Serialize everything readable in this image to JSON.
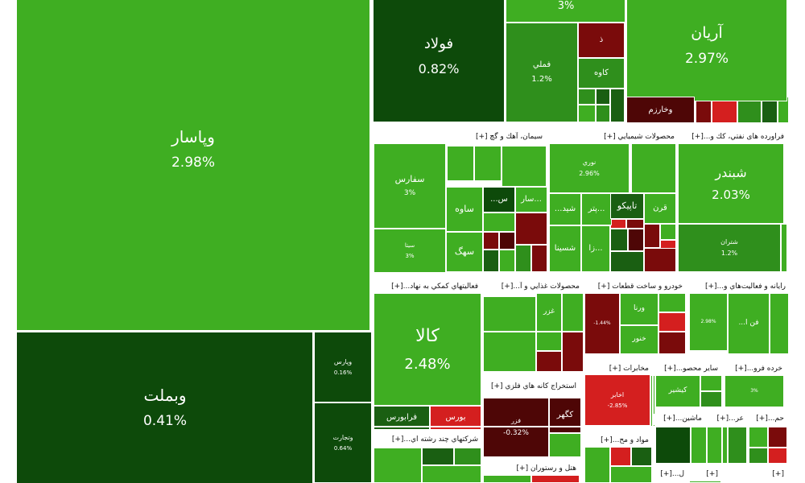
{
  "chart_data": {
    "type": "treemap",
    "colors": {
      "bright_green": "#3fae22",
      "mid_green": "#2f8f1c",
      "dark_green": "#1a5f12",
      "deep_green": "#0d4a0a",
      "red": "#d41f1f",
      "dark_red": "#7a0b0b",
      "maroon": "#4e0606",
      "header_bg": "#ffffff"
    },
    "sectors": [
      {
        "label": "فراورده های نفتي، کك و...[+]"
      },
      {
        "label": "محصولات شيميايي [+]"
      },
      {
        "label": "سيمان، آهك و گچ [+]"
      },
      {
        "label": "رايانه و فعاليت‌هاي و...[+]"
      },
      {
        "label": "خودرو و ساخت قطعات [+]"
      },
      {
        "label": "محصولات غذايي و آ...[+]"
      },
      {
        "label": "فعاليتهاي كمكي به نهاد...[+]"
      },
      {
        "label": "مخابرات [+]"
      },
      {
        "label": "ساير محصو...[+]"
      },
      {
        "label": "خرده فرو...[+]"
      },
      {
        "label": "استخراج كانه هاي فلزي [+]"
      },
      {
        "label": "ماشين...[+]"
      },
      {
        "label": "عر...[+]"
      },
      {
        "label": "حم...[+]"
      },
      {
        "label": "مواد و مح...[+]"
      },
      {
        "label": "شركتهاي چند رشته اي...[+]"
      },
      {
        "label": "هتل و رستوران [+]"
      },
      {
        "label": "ل...[+]"
      },
      {
        "label": "[+]"
      },
      {
        "label": "[+]"
      }
    ],
    "tiles": [
      {
        "name": "وپاسار",
        "change": "2.98%",
        "color": "bright_green"
      },
      {
        "name": "وبملت",
        "change": "0.41%",
        "color": "deep_green"
      },
      {
        "name": "وپارس",
        "change": "0.16%",
        "color": "deep_green"
      },
      {
        "name": "وتجارت",
        "change": "0.64%",
        "color": "deep_green"
      },
      {
        "name": "فولاد",
        "change": "0.82%",
        "color": "deep_green"
      },
      {
        "name": "",
        "change": "3%",
        "color": "bright_green"
      },
      {
        "name": "آريان",
        "change": "2.97%",
        "color": "bright_green"
      },
      {
        "name": "فملي",
        "change": "1.2%",
        "color": "mid_green"
      },
      {
        "name": "ذ",
        "change": "",
        "color": "dark_red"
      },
      {
        "name": "كاوه",
        "change": "",
        "color": "mid_green"
      },
      {
        "name": "وخارزم",
        "change": "",
        "color": "maroon"
      },
      {
        "name": "سفارس",
        "change": "3%",
        "color": "bright_green"
      },
      {
        "name": "ساوه",
        "change": "",
        "color": "bright_green"
      },
      {
        "name": "سار...",
        "change": "",
        "color": "bright_green"
      },
      {
        "name": "...س",
        "change": "",
        "color": "deep_green"
      },
      {
        "name": "سهگ",
        "change": "",
        "color": "bright_green"
      },
      {
        "name": "سيتا",
        "change": "3%",
        "color": "bright_green"
      },
      {
        "name": "نوري",
        "change": "2.96%",
        "color": "bright_green"
      },
      {
        "name": "...شيد",
        "change": "",
        "color": "bright_green"
      },
      {
        "name": "پتر...",
        "change": "",
        "color": "bright_green"
      },
      {
        "name": "تاپيكو",
        "change": "",
        "color": "dark_green"
      },
      {
        "name": "قرن",
        "change": "",
        "color": "bright_green"
      },
      {
        "name": "شسينا",
        "change": "",
        "color": "bright_green"
      },
      {
        "name": "زا...",
        "change": "",
        "color": "bright_green"
      },
      {
        "name": "شبندر",
        "change": "2.03%",
        "color": "bright_green"
      },
      {
        "name": "شتران",
        "change": "1.2%",
        "color": "mid_green"
      },
      {
        "name": "كالا",
        "change": "2.48%",
        "color": "bright_green"
      },
      {
        "name": "فرابورس",
        "change": "",
        "color": "dark_green"
      },
      {
        "name": "بورس",
        "change": "",
        "color": "red"
      },
      {
        "name": "غزر",
        "change": "",
        "color": "bright_green"
      },
      {
        "name": "ورنا",
        "change": "",
        "color": "bright_green"
      },
      {
        "name": "خنور",
        "change": "",
        "color": "bright_green"
      },
      {
        "name": "",
        "change": "-1.44%",
        "color": "dark_red"
      },
      {
        "name": "",
        "change": "2.98%",
        "color": "bright_green"
      },
      {
        "name": "...فن ا",
        "change": "",
        "color": "bright_green"
      },
      {
        "name": "اخابر",
        "change": "-2.85%",
        "color": "red"
      },
      {
        "name": "كيشير",
        "change": "",
        "color": "bright_green"
      },
      {
        "name": "",
        "change": "3%",
        "color": "bright_green"
      },
      {
        "name": "كگهر",
        "change": "",
        "color": "maroon"
      },
      {
        "name": "فزر",
        "change": "-0.32%",
        "color": "maroon"
      }
    ]
  }
}
